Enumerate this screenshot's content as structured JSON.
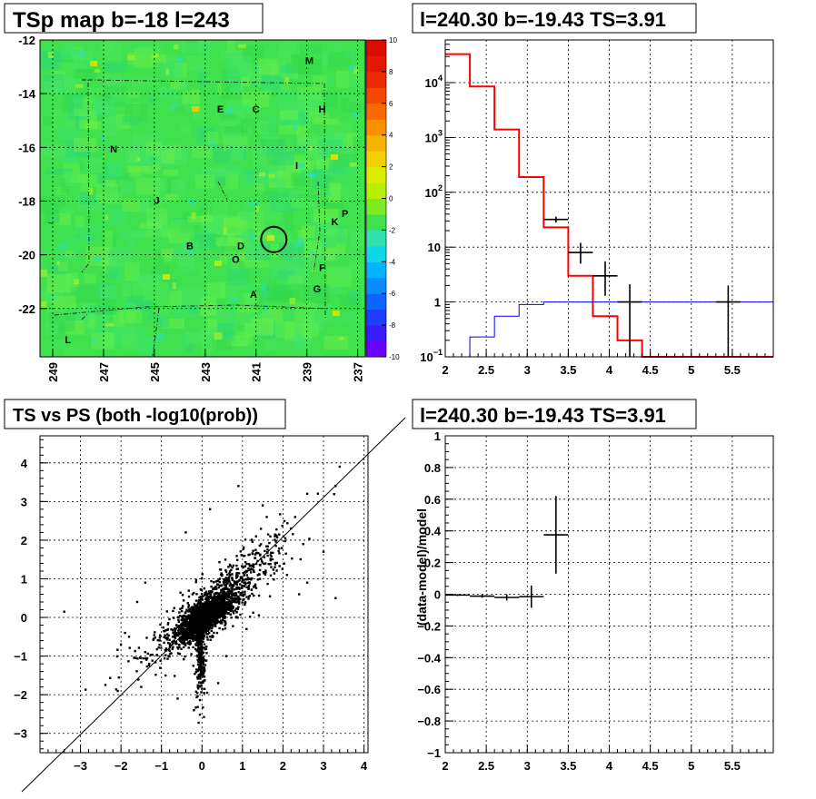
{
  "panels": {
    "map_title": "TSp map b=-18 l=243",
    "spectrum_title": "l=240.30 b=-19.43 TS=3.91",
    "scatter_title": "TS vs PS (both -log10(prob))",
    "residual_title": "l=240.30 b=-19.43 TS=3.91"
  },
  "colors": {
    "model_line": "#ff0000",
    "background_line": "#0000ff",
    "data": "#000000"
  },
  "chart_data": [
    {
      "type": "heatmap",
      "title": "TSp map b=-18 l=243",
      "xlabel": "",
      "ylabel": "",
      "x_ticks": [
        "249",
        "247",
        "245",
        "243",
        "241",
        "239",
        "237"
      ],
      "y_ticks": [
        "-12",
        "-14",
        "-16",
        "-18",
        "-20",
        "-22"
      ],
      "xlim": [
        249.5,
        236.7
      ],
      "ylim": [
        -23.8,
        -12
      ],
      "colorbar": {
        "ticks": [
          "10",
          "8",
          "6",
          "4",
          "2",
          "0",
          "-2",
          "-4",
          "-6",
          "-8",
          "-10"
        ],
        "range": [
          -10,
          10
        ]
      },
      "source_labels": [
        {
          "label": "M",
          "l": 238.9,
          "b": -12.9
        },
        {
          "label": "E",
          "l": 242.4,
          "b": -14.7
        },
        {
          "label": "C",
          "l": 241.0,
          "b": -14.7
        },
        {
          "label": "H",
          "l": 238.4,
          "b": -14.7
        },
        {
          "label": "N",
          "l": 246.6,
          "b": -16.2
        },
        {
          "label": "I",
          "l": 239.4,
          "b": -16.8
        },
        {
          "label": "J",
          "l": 244.9,
          "b": -18.1
        },
        {
          "label": "P",
          "l": 237.5,
          "b": -18.6
        },
        {
          "label": "K",
          "l": 237.9,
          "b": -18.9
        },
        {
          "label": "B",
          "l": 243.6,
          "b": -19.8
        },
        {
          "label": "D",
          "l": 241.6,
          "b": -19.8
        },
        {
          "label": "O",
          "l": 241.8,
          "b": -20.3
        },
        {
          "label": "F",
          "l": 238.4,
          "b": -20.6
        },
        {
          "label": "G",
          "l": 238.6,
          "b": -21.4
        },
        {
          "label": "A",
          "l": 241.1,
          "b": -21.6
        },
        {
          "label": "L",
          "l": 248.4,
          "b": -23.3
        }
      ],
      "marked_position": {
        "l": 240.3,
        "b": -19.43
      }
    },
    {
      "type": "line",
      "title": "l=240.30 b=-19.43 TS=3.91",
      "xlabel": "",
      "ylabel": "",
      "y_scale": "log",
      "xlim": [
        2,
        6
      ],
      "ylim": [
        0.1,
        60000
      ],
      "x_ticks": [
        "2",
        "2.5",
        "3",
        "3.5",
        "4",
        "4.5",
        "5",
        "5.5"
      ],
      "y_ticks": [
        "10^-1",
        "1",
        "10",
        "10^2",
        "10^3",
        "10^4"
      ],
      "series": [
        {
          "color": "#ff0000",
          "steps": [
            [
              2.0,
              2.3,
              33000
            ],
            [
              2.3,
              2.6,
              8500
            ],
            [
              2.6,
              2.9,
              1400
            ],
            [
              2.9,
              3.2,
              190
            ],
            [
              3.2,
              3.5,
              23
            ],
            [
              3.5,
              3.8,
              3
            ],
            [
              3.8,
              4.1,
              0.55
            ],
            [
              4.1,
              4.4,
              0.2
            ],
            [
              4.4,
              6.0,
              0.1
            ]
          ]
        },
        {
          "color": "#0000ff",
          "steps": [
            [
              2.0,
              2.3,
              0.1
            ],
            [
              2.3,
              2.6,
              0.23
            ],
            [
              2.6,
              2.9,
              0.55
            ],
            [
              2.9,
              3.2,
              0.9
            ],
            [
              3.2,
              3.5,
              1.0
            ],
            [
              3.5,
              6.0,
              1.0
            ]
          ]
        }
      ],
      "points": [
        {
          "x": 3.35,
          "y": 32,
          "xerr": 0.15,
          "ylo": 28,
          "yhi": 36
        },
        {
          "x": 3.65,
          "y": 8,
          "xerr": 0.15,
          "ylo": 5,
          "yhi": 12
        },
        {
          "x": 3.95,
          "y": 3,
          "xerr": 0.15,
          "ylo": 1.3,
          "yhi": 5.5
        },
        {
          "x": 4.25,
          "y": 1,
          "xerr": 0.15,
          "ylo": 0.1,
          "yhi": 2.1
        },
        {
          "x": 5.45,
          "y": 1,
          "xerr": 0.15,
          "ylo": 0.1,
          "yhi": 2.0
        }
      ]
    },
    {
      "type": "scatter",
      "title": "TS vs PS (both -log10(prob))",
      "xlabel": "",
      "ylabel": "",
      "xlim": [
        -4,
        4.1
      ],
      "ylim": [
        -3.5,
        4.7
      ],
      "x_ticks": [
        "-3",
        "-2",
        "-1",
        "0",
        "1",
        "2",
        "3",
        "4"
      ],
      "y_ticks": [
        "-3",
        "-2",
        "-1",
        "0",
        "1",
        "2",
        "3",
        "4"
      ],
      "reference_line": "y = x",
      "outliers": [
        [
          3.4,
          3.9
        ],
        [
          3.3,
          3.4
        ],
        [
          2.6,
          3.2
        ],
        [
          2.3,
          2.6
        ],
        [
          3.0,
          1.7
        ],
        [
          3.3,
          0.5
        ],
        [
          2.4,
          0.6
        ],
        [
          -3.4,
          0.15
        ],
        [
          -2.0,
          -0.7
        ],
        [
          -1.9,
          -0.4
        ],
        [
          -1.5,
          -1.8
        ],
        [
          0.9,
          3.4
        ],
        [
          1.5,
          2.9
        ],
        [
          2.1,
          1.1
        ],
        [
          1.8,
          2.1
        ],
        [
          2.6,
          0.9
        ],
        [
          -1.8,
          -0.5
        ],
        [
          -1.3,
          -1.2
        ],
        [
          1.1,
          -0.3
        ],
        [
          0.4,
          -1.7
        ],
        [
          0.6,
          -1.0
        ],
        [
          -0.4,
          2.2
        ],
        [
          0.2,
          2.8
        ],
        [
          1.6,
          2.6
        ],
        [
          2.5,
          1.9
        ],
        [
          -0.9,
          -1.5
        ],
        [
          -0.6,
          -2.1
        ],
        [
          -0.2,
          -2.4
        ],
        [
          2.2,
          2.3
        ],
        [
          1.8,
          1.3
        ],
        [
          -1.6,
          0.4
        ],
        [
          -1.4,
          0.9
        ]
      ]
    },
    {
      "type": "scatter",
      "title": "l=240.30 b=-19.43 TS=3.91",
      "xlabel": "",
      "ylabel": "(data-model)/model",
      "xlim": [
        2,
        6
      ],
      "ylim": [
        -1,
        1
      ],
      "x_ticks": [
        "2",
        "2.5",
        "3",
        "3.5",
        "4",
        "4.5",
        "5",
        "5.5"
      ],
      "y_ticks": [
        "-1",
        "-0.8",
        "-0.6",
        "-0.4",
        "-0.2",
        "0",
        "0.2",
        "0.4",
        "0.6",
        "0.8",
        "1"
      ],
      "points": [
        {
          "x": 2.15,
          "y": -0.005,
          "xerr": 0.15,
          "yerr": 0.006
        },
        {
          "x": 2.45,
          "y": -0.012,
          "xerr": 0.15,
          "yerr": 0.01
        },
        {
          "x": 2.75,
          "y": -0.02,
          "xerr": 0.15,
          "yerr": 0.02
        },
        {
          "x": 3.05,
          "y": -0.015,
          "xerr": 0.15,
          "yerr": 0.07
        },
        {
          "x": 3.35,
          "y": 0.375,
          "xerr": 0.15,
          "yerr": 0.245
        }
      ]
    }
  ]
}
